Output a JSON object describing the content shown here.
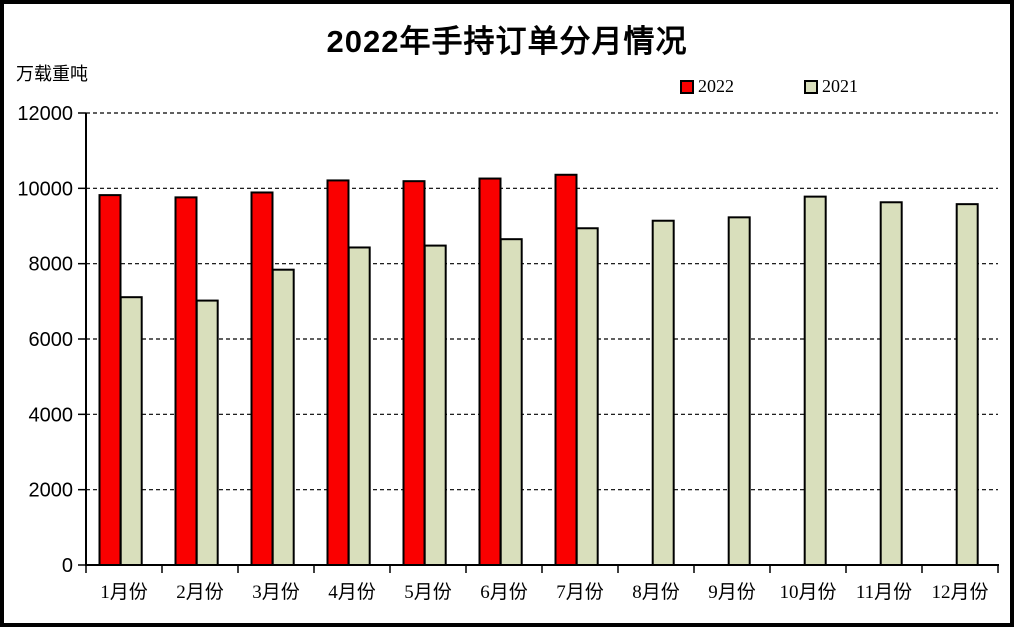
{
  "title": "2022年手持订单分月情况",
  "unit_label": "万载重吨",
  "legend": [
    {
      "label": "2022",
      "color": "#fa0000"
    },
    {
      "label": "2021",
      "color": "#d9dfbc"
    }
  ],
  "colors": {
    "background": "#ffffff",
    "frame_border": "#000000",
    "axis": "#000000",
    "gridline": "#000000",
    "bar_border": "#000000",
    "bar_2022": "#fa0000",
    "bar_2021": "#d9dfbc"
  },
  "chart_data": {
    "type": "bar",
    "title": "2022年手持订单分月情况",
    "ylabel": "万载重吨",
    "xlabel": "",
    "categories": [
      "1月份",
      "2月份",
      "3月份",
      "4月份",
      "5月份",
      "6月份",
      "7月份",
      "8月份",
      "9月份",
      "10月份",
      "11月份",
      "12月份"
    ],
    "series": [
      {
        "name": "2022",
        "color": "#fa0000",
        "values": [
          9820,
          9760,
          9890,
          10210,
          10190,
          10260,
          10360,
          null,
          null,
          null,
          null,
          null
        ]
      },
      {
        "name": "2021",
        "color": "#d9dfbc",
        "values": [
          7110,
          7020,
          7840,
          8430,
          8480,
          8650,
          8940,
          9140,
          9230,
          9780,
          9630,
          9580
        ]
      }
    ],
    "ylim": [
      0,
      12000
    ],
    "ytick_step": 2000,
    "ytick_labels": [
      "0",
      "2000",
      "4000",
      "6000",
      "8000",
      "10000",
      "12000"
    ],
    "grid": "horizontal-dashed",
    "legend_position": "top-right"
  }
}
